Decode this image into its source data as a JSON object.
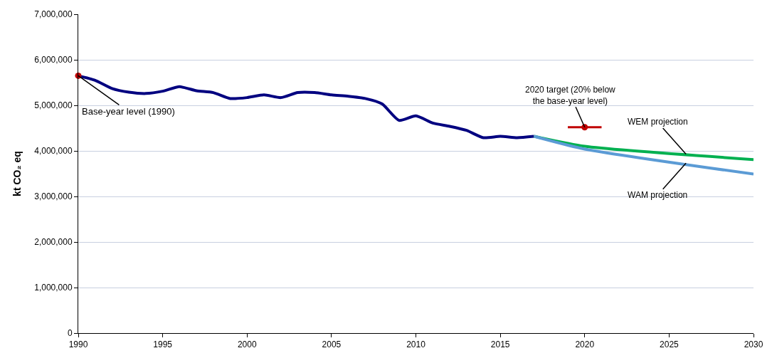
{
  "chart_data": {
    "type": "line",
    "ylabel": "kt CO₂ eq",
    "xlim": [
      1990,
      2030
    ],
    "xticks": [
      1990,
      1995,
      2000,
      2005,
      2010,
      2015,
      2020,
      2025,
      2030
    ],
    "ylim": [
      0,
      7000000
    ],
    "yticks": [
      0,
      {
        "value": 1000000,
        "label": "1,000,000"
      },
      {
        "value": 2000000,
        "label": "2,000,000"
      },
      {
        "value": 3000000,
        "label": "3,000,000"
      },
      {
        "value": 4000000,
        "label": "4,000,000"
      },
      {
        "value": 5000000,
        "label": "5,000,000"
      },
      {
        "value": 6000000,
        "label": "6,000,000"
      },
      {
        "value": 7000000,
        "label": "7,000,000"
      }
    ],
    "grid": "y",
    "series": [
      {
        "color": "#000080",
        "marker": "none",
        "x": [
          1990,
          1991,
          1992,
          1993,
          1994,
          1995,
          1996,
          1997,
          1998,
          1999,
          2000,
          2001,
          2002,
          2003,
          2004,
          2005,
          2006,
          2007,
          2008,
          2009,
          2010,
          2011,
          2012,
          2013,
          2014,
          2015,
          2016,
          2017
        ],
        "values": [
          5650000,
          5550000,
          5370000,
          5290000,
          5260000,
          5310000,
          5410000,
          5320000,
          5280000,
          5150000,
          5170000,
          5230000,
          5170000,
          5280000,
          5280000,
          5230000,
          5200000,
          5150000,
          5030000,
          4670000,
          4770000,
          4610000,
          4540000,
          4450000,
          4290000,
          4320000,
          4290000,
          4320000
        ]
      },
      {
        "color": "#00b050",
        "marker": "none",
        "x": [
          2017,
          2020,
          2030
        ],
        "values": [
          4320000,
          4100000,
          3810000
        ]
      },
      {
        "color": "#5b9bd5",
        "marker": "none",
        "x": [
          2017,
          2020,
          2030
        ],
        "values": [
          4320000,
          4040000,
          3490000
        ]
      },
      {
        "type": "scatter",
        "color": "#c00000",
        "marker": "circle",
        "x": [
          1990
        ],
        "values": [
          5650000
        ]
      },
      {
        "type": "scatter",
        "color": "#c00000",
        "marker": "circle",
        "x": [
          2020
        ],
        "values": [
          4520000
        ],
        "xerrors": [
          1
        ]
      }
    ],
    "annotations": [
      {
        "text": "Base-year level (1990)",
        "x": 1990,
        "y": 5650000
      },
      {
        "text": "2020 target (20% below\nthe base-year level)",
        "x": 2020,
        "y": 4520000
      },
      {
        "text": "WEM projection",
        "x": 2026,
        "y": 3930000
      },
      {
        "text": "WAM projection",
        "x": 2026,
        "y": 3730000
      }
    ]
  }
}
